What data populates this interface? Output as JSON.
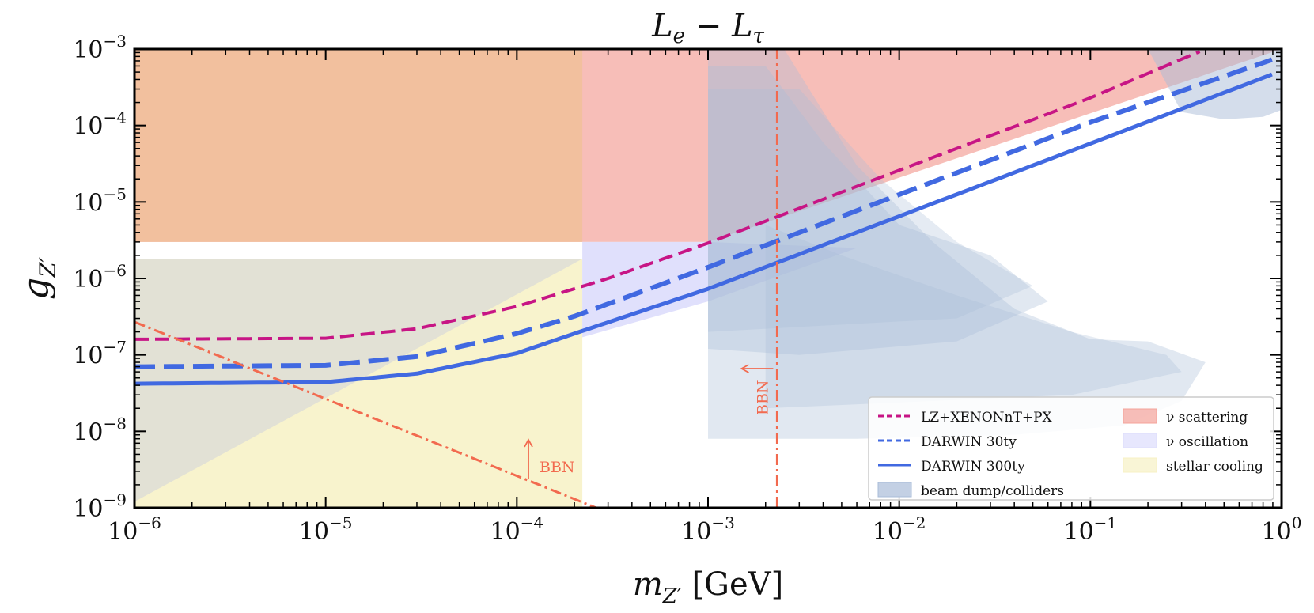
{
  "chart_data": {
    "type": "line",
    "title": "L_e − L_τ",
    "title_main": "L",
    "title_sub1": "e",
    "title_op": " − L",
    "title_sub2": "τ",
    "xlabel": "m_Z′ [GeV]",
    "xlabel_main": "m",
    "xlabel_sub": "Z′",
    "xlabel_unit": " [GeV]",
    "ylabel": "g_Z′",
    "ylabel_main": "g",
    "ylabel_sub": "Z′",
    "xscale": "log",
    "yscale": "log",
    "xlim": [
      1e-06,
      1
    ],
    "ylim": [
      1e-09,
      0.001
    ],
    "xticks": [
      {
        "exp": -6,
        "base": "10",
        "sup": "−6"
      },
      {
        "exp": -5,
        "base": "10",
        "sup": "−5"
      },
      {
        "exp": -4,
        "base": "10",
        "sup": "−4"
      },
      {
        "exp": -3,
        "base": "10",
        "sup": "−3"
      },
      {
        "exp": -2,
        "base": "10",
        "sup": "−2"
      },
      {
        "exp": -1,
        "base": "10",
        "sup": "−1"
      },
      {
        "exp": 0,
        "base": "10",
        "sup": "0"
      }
    ],
    "yticks": [
      {
        "exp": -9,
        "base": "10",
        "sup": "−9"
      },
      {
        "exp": -8,
        "base": "10",
        "sup": "−8"
      },
      {
        "exp": -7,
        "base": "10",
        "sup": "−7"
      },
      {
        "exp": -6,
        "base": "10",
        "sup": "−6"
      },
      {
        "exp": -5,
        "base": "10",
        "sup": "−5"
      },
      {
        "exp": -4,
        "base": "10",
        "sup": "−4"
      },
      {
        "exp": -3,
        "base": "10",
        "sup": "−3"
      }
    ],
    "series": [
      {
        "name": "LZ+XENONnT+PX",
        "style": "dashed",
        "color": "#c71585",
        "x": [
          1e-06,
          1e-05,
          3e-05,
          0.0001,
          0.0003,
          0.001,
          0.01,
          0.1,
          0.4
        ],
        "y": [
          1.6e-07,
          1.65e-07,
          2.2e-07,
          4.3e-07,
          1e-06,
          2.9e-06,
          2.6e-05,
          0.00023,
          0.001
        ]
      },
      {
        "name": "DARWIN 30ty",
        "style": "dashed",
        "color": "#4169e1",
        "x": [
          1e-06,
          1e-05,
          3e-05,
          0.0001,
          0.0002,
          0.001,
          0.01,
          0.1,
          1
        ],
        "y": [
          7e-08,
          7.3e-08,
          9.5e-08,
          1.9e-07,
          3.2e-07,
          1.4e-06,
          1.25e-05,
          0.00011,
          0.0008
        ]
      },
      {
        "name": "DARWIN 300ty",
        "style": "solid",
        "color": "#4169e1",
        "x": [
          1e-06,
          1e-05,
          3e-05,
          0.0001,
          0.0002,
          0.001,
          0.01,
          0.1,
          1
        ],
        "y": [
          4.2e-08,
          4.4e-08,
          5.7e-08,
          1.05e-07,
          1.9e-07,
          7.3e-07,
          6.5e-06,
          5.8e-05,
          0.00052
        ]
      }
    ],
    "bbn_lines": [
      {
        "label": "BBN",
        "x": [
          1e-06,
          0.00026
        ],
        "y": [
          2.7e-07,
          1e-09
        ],
        "arrow": "up",
        "color": "#f26a4f"
      },
      {
        "label": "BBN",
        "x": [
          0.0023,
          0.0023
        ],
        "y": [
          1e-09,
          0.001
        ],
        "arrow": "left",
        "color": "#f26a4f"
      }
    ],
    "regions": [
      {
        "name": "ν scattering",
        "color": "#f4a39a"
      },
      {
        "name": "ν oscillation",
        "color": "#ddddfc"
      },
      {
        "name": "stellar cooling",
        "color": "#f7f1c4"
      },
      {
        "name": "beam dump/colliders",
        "color": "#a9bcd8"
      }
    ],
    "legend": {
      "location": "lower-right",
      "entries": [
        {
          "label": "LZ+XENONnT+PX",
          "kind": "dashed",
          "color": "#c71585"
        },
        {
          "label": "DARWIN 30ty",
          "kind": "dashed",
          "color": "#4169e1"
        },
        {
          "label": "DARWIN 300ty",
          "kind": "solid",
          "color": "#4169e1"
        },
        {
          "label": "beam dump/colliders",
          "kind": "patch",
          "color": "#a9bcd8"
        },
        {
          "label": "ν scattering",
          "kind": "patch",
          "color": "#f4a39a"
        },
        {
          "label": "ν oscillation",
          "kind": "patch",
          "color": "#ddddfc"
        },
        {
          "label": "stellar cooling",
          "kind": "patch",
          "color": "#f7f1c4"
        }
      ]
    }
  }
}
